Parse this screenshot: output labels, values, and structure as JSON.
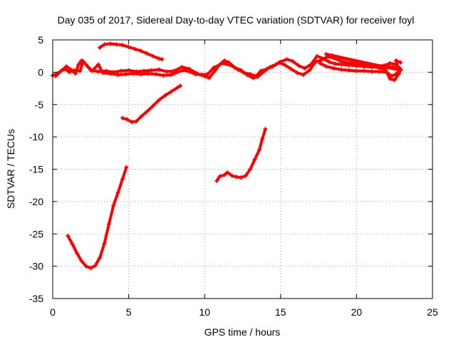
{
  "chart_data": {
    "type": "scatter",
    "title": "Day 035 of 2017, Sidereal Day-to-day VTEC variation (SDTVAR) for receiver foyl",
    "xlabel": "GPS time / hours",
    "ylabel": "SDTVAR / TECUs",
    "xlim": [
      0,
      25
    ],
    "ylim": [
      -35,
      5
    ],
    "xticks": [
      0,
      5,
      10,
      15,
      20,
      25
    ],
    "yticks": [
      -35,
      -30,
      -25,
      -20,
      -15,
      -10,
      -5,
      0,
      5
    ],
    "grid": true,
    "marker_color": "#ff0000",
    "series": [
      {
        "name": "trace-near-zero-main",
        "points": [
          [
            0.0,
            -0.5
          ],
          [
            0.3,
            -0.2
          ],
          [
            0.6,
            0.3
          ],
          [
            0.9,
            0.9
          ],
          [
            1.2,
            0.4
          ],
          [
            1.5,
            -0.2
          ],
          [
            1.7,
            1.2
          ],
          [
            1.9,
            1.8
          ],
          [
            2.2,
            1.2
          ],
          [
            2.5,
            0.3
          ],
          [
            3.0,
            0.1
          ],
          [
            3.5,
            0.2
          ],
          [
            4.0,
            0.0
          ],
          [
            4.5,
            0.2
          ],
          [
            5.0,
            0.3
          ],
          [
            5.5,
            0.1
          ],
          [
            6.0,
            0.2
          ],
          [
            6.5,
            0.3
          ],
          [
            7.0,
            0.4
          ],
          [
            7.5,
            0.1
          ],
          [
            8.0,
            0.2
          ],
          [
            8.5,
            0.8
          ],
          [
            9.0,
            0.5
          ],
          [
            9.5,
            -0.2
          ],
          [
            10.0,
            -0.6
          ],
          [
            10.3,
            -0.9
          ],
          [
            10.7,
            0.3
          ],
          [
            11.0,
            1.2
          ],
          [
            11.3,
            1.8
          ],
          [
            11.6,
            1.5
          ],
          [
            12.0,
            0.7
          ],
          [
            12.4,
            0.3
          ],
          [
            12.8,
            -0.4
          ],
          [
            13.2,
            -0.9
          ],
          [
            13.5,
            -0.7
          ],
          [
            13.9,
            0.1
          ],
          [
            14.3,
            0.8
          ],
          [
            14.7,
            1.2
          ],
          [
            15.0,
            1.6
          ],
          [
            15.4,
            2.0
          ],
          [
            15.8,
            1.7
          ],
          [
            16.2,
            1.0
          ],
          [
            16.6,
            0.6
          ],
          [
            17.0,
            1.2
          ],
          [
            17.4,
            2.5
          ],
          [
            17.8,
            2.1
          ],
          [
            18.2,
            1.6
          ],
          [
            18.6,
            1.3
          ],
          [
            19.0,
            1.2
          ],
          [
            19.5,
            1.1
          ],
          [
            20.0,
            1.0
          ],
          [
            20.5,
            0.9
          ],
          [
            21.0,
            0.8
          ],
          [
            21.5,
            0.8
          ],
          [
            22.0,
            0.9
          ],
          [
            22.4,
            0.8
          ],
          [
            22.8,
            0.6
          ]
        ]
      },
      {
        "name": "trace-near-zero-secondary",
        "points": [
          [
            0.2,
            -0.6
          ],
          [
            0.5,
            0.1
          ],
          [
            0.8,
            0.5
          ],
          [
            1.1,
            0.0
          ],
          [
            1.4,
            0.3
          ],
          [
            1.8,
            0.2
          ],
          [
            2.0,
            1.7
          ],
          [
            2.3,
            0.9
          ],
          [
            2.6,
            0.2
          ],
          [
            3.0,
            1.2
          ],
          [
            3.3,
            -0.1
          ],
          [
            3.8,
            -0.2
          ],
          [
            4.3,
            -0.4
          ],
          [
            4.8,
            -0.3
          ],
          [
            5.3,
            -0.2
          ],
          [
            5.8,
            -0.3
          ],
          [
            6.3,
            -0.2
          ],
          [
            6.8,
            -0.3
          ],
          [
            7.3,
            -0.5
          ],
          [
            7.8,
            -0.4
          ],
          [
            8.2,
            0.0
          ],
          [
            8.6,
            0.3
          ],
          [
            9.0,
            0.1
          ],
          [
            9.4,
            -0.3
          ],
          [
            9.8,
            -0.4
          ],
          [
            10.2,
            -0.3
          ],
          [
            10.6,
            0.7
          ],
          [
            11.2,
            1.4
          ],
          [
            11.8,
            1.0
          ],
          [
            12.2,
            0.4
          ],
          [
            12.6,
            -0.1
          ],
          [
            13.0,
            -0.3
          ],
          [
            13.4,
            -0.6
          ],
          [
            13.7,
            0.2
          ],
          [
            14.1,
            0.5
          ],
          [
            14.5,
            0.9
          ],
          [
            14.9,
            1.5
          ],
          [
            15.3,
            1.1
          ],
          [
            15.7,
            0.5
          ],
          [
            16.1,
            -0.1
          ],
          [
            16.5,
            -0.4
          ],
          [
            16.9,
            0.3
          ],
          [
            17.3,
            1.6
          ],
          [
            17.7,
            1.9
          ],
          [
            18.1,
            2.4
          ],
          [
            18.5,
            2.2
          ],
          [
            18.9,
            1.8
          ],
          [
            19.3,
            1.5
          ],
          [
            19.8,
            1.3
          ],
          [
            20.3,
            1.2
          ],
          [
            20.8,
            1.1
          ],
          [
            21.3,
            1.0
          ],
          [
            21.8,
            1.0
          ],
          [
            22.2,
            1.4
          ],
          [
            22.6,
            1.2
          ],
          [
            22.9,
            0.5
          ]
        ]
      },
      {
        "name": "trace-lower-band",
        "points": [
          [
            17.6,
            1.4
          ],
          [
            18.0,
            0.9
          ],
          [
            18.5,
            0.6
          ],
          [
            19.0,
            0.4
          ],
          [
            19.5,
            0.3
          ],
          [
            20.0,
            0.2
          ],
          [
            20.5,
            0.2
          ],
          [
            21.0,
            0.1
          ],
          [
            21.5,
            0.1
          ],
          [
            22.0,
            0.0
          ],
          [
            22.3,
            -0.6
          ],
          [
            22.6,
            -0.3
          ],
          [
            22.9,
            0.3
          ],
          [
            18.0,
            2.8
          ],
          [
            18.4,
            2.6
          ],
          [
            21.9,
            0.4
          ],
          [
            22.2,
            -1.0
          ],
          [
            22.5,
            -1.2
          ],
          [
            22.8,
            -0.2
          ],
          [
            22.6,
            1.8
          ],
          [
            22.9,
            1.5
          ]
        ]
      },
      {
        "name": "trace-upper-arc",
        "points": [
          [
            3.1,
            3.8
          ],
          [
            3.4,
            4.3
          ],
          [
            3.8,
            4.4
          ],
          [
            4.2,
            4.3
          ],
          [
            4.6,
            4.2
          ],
          [
            5.0,
            3.9
          ],
          [
            5.4,
            3.6
          ],
          [
            5.8,
            3.3
          ],
          [
            6.2,
            2.9
          ],
          [
            6.6,
            2.5
          ],
          [
            7.0,
            2.1
          ],
          [
            7.2,
            2.0
          ]
        ]
      },
      {
        "name": "trace-minus-five-segment",
        "points": [
          [
            4.6,
            -7.1
          ],
          [
            4.9,
            -7.3
          ],
          [
            5.2,
            -7.7
          ],
          [
            5.5,
            -7.6
          ],
          [
            5.8,
            -6.9
          ],
          [
            6.2,
            -6.1
          ],
          [
            6.6,
            -5.2
          ],
          [
            7.0,
            -4.3
          ],
          [
            7.4,
            -3.6
          ],
          [
            7.8,
            -3.0
          ],
          [
            8.2,
            -2.4
          ],
          [
            8.4,
            -2.1
          ]
        ]
      },
      {
        "name": "trace-deep-dip",
        "points": [
          [
            1.0,
            -25.3
          ],
          [
            1.3,
            -26.6
          ],
          [
            1.6,
            -28.0
          ],
          [
            1.9,
            -29.2
          ],
          [
            2.2,
            -30.0
          ],
          [
            2.5,
            -30.3
          ],
          [
            2.8,
            -29.9
          ],
          [
            3.1,
            -28.7
          ],
          [
            3.4,
            -26.5
          ],
          [
            3.7,
            -23.5
          ],
          [
            4.0,
            -20.6
          ],
          [
            4.3,
            -18.6
          ],
          [
            4.6,
            -16.5
          ],
          [
            4.85,
            -14.7
          ]
        ]
      },
      {
        "name": "trace-mid-segment",
        "points": [
          [
            10.8,
            -16.8
          ],
          [
            11.0,
            -16.1
          ],
          [
            11.3,
            -15.9
          ],
          [
            11.5,
            -15.5
          ],
          [
            11.8,
            -16.0
          ],
          [
            12.1,
            -16.2
          ],
          [
            12.4,
            -16.3
          ],
          [
            12.7,
            -16.0
          ],
          [
            13.0,
            -15.0
          ],
          [
            13.3,
            -13.5
          ],
          [
            13.6,
            -12.0
          ],
          [
            13.8,
            -10.3
          ],
          [
            14.0,
            -8.8
          ]
        ]
      }
    ]
  }
}
